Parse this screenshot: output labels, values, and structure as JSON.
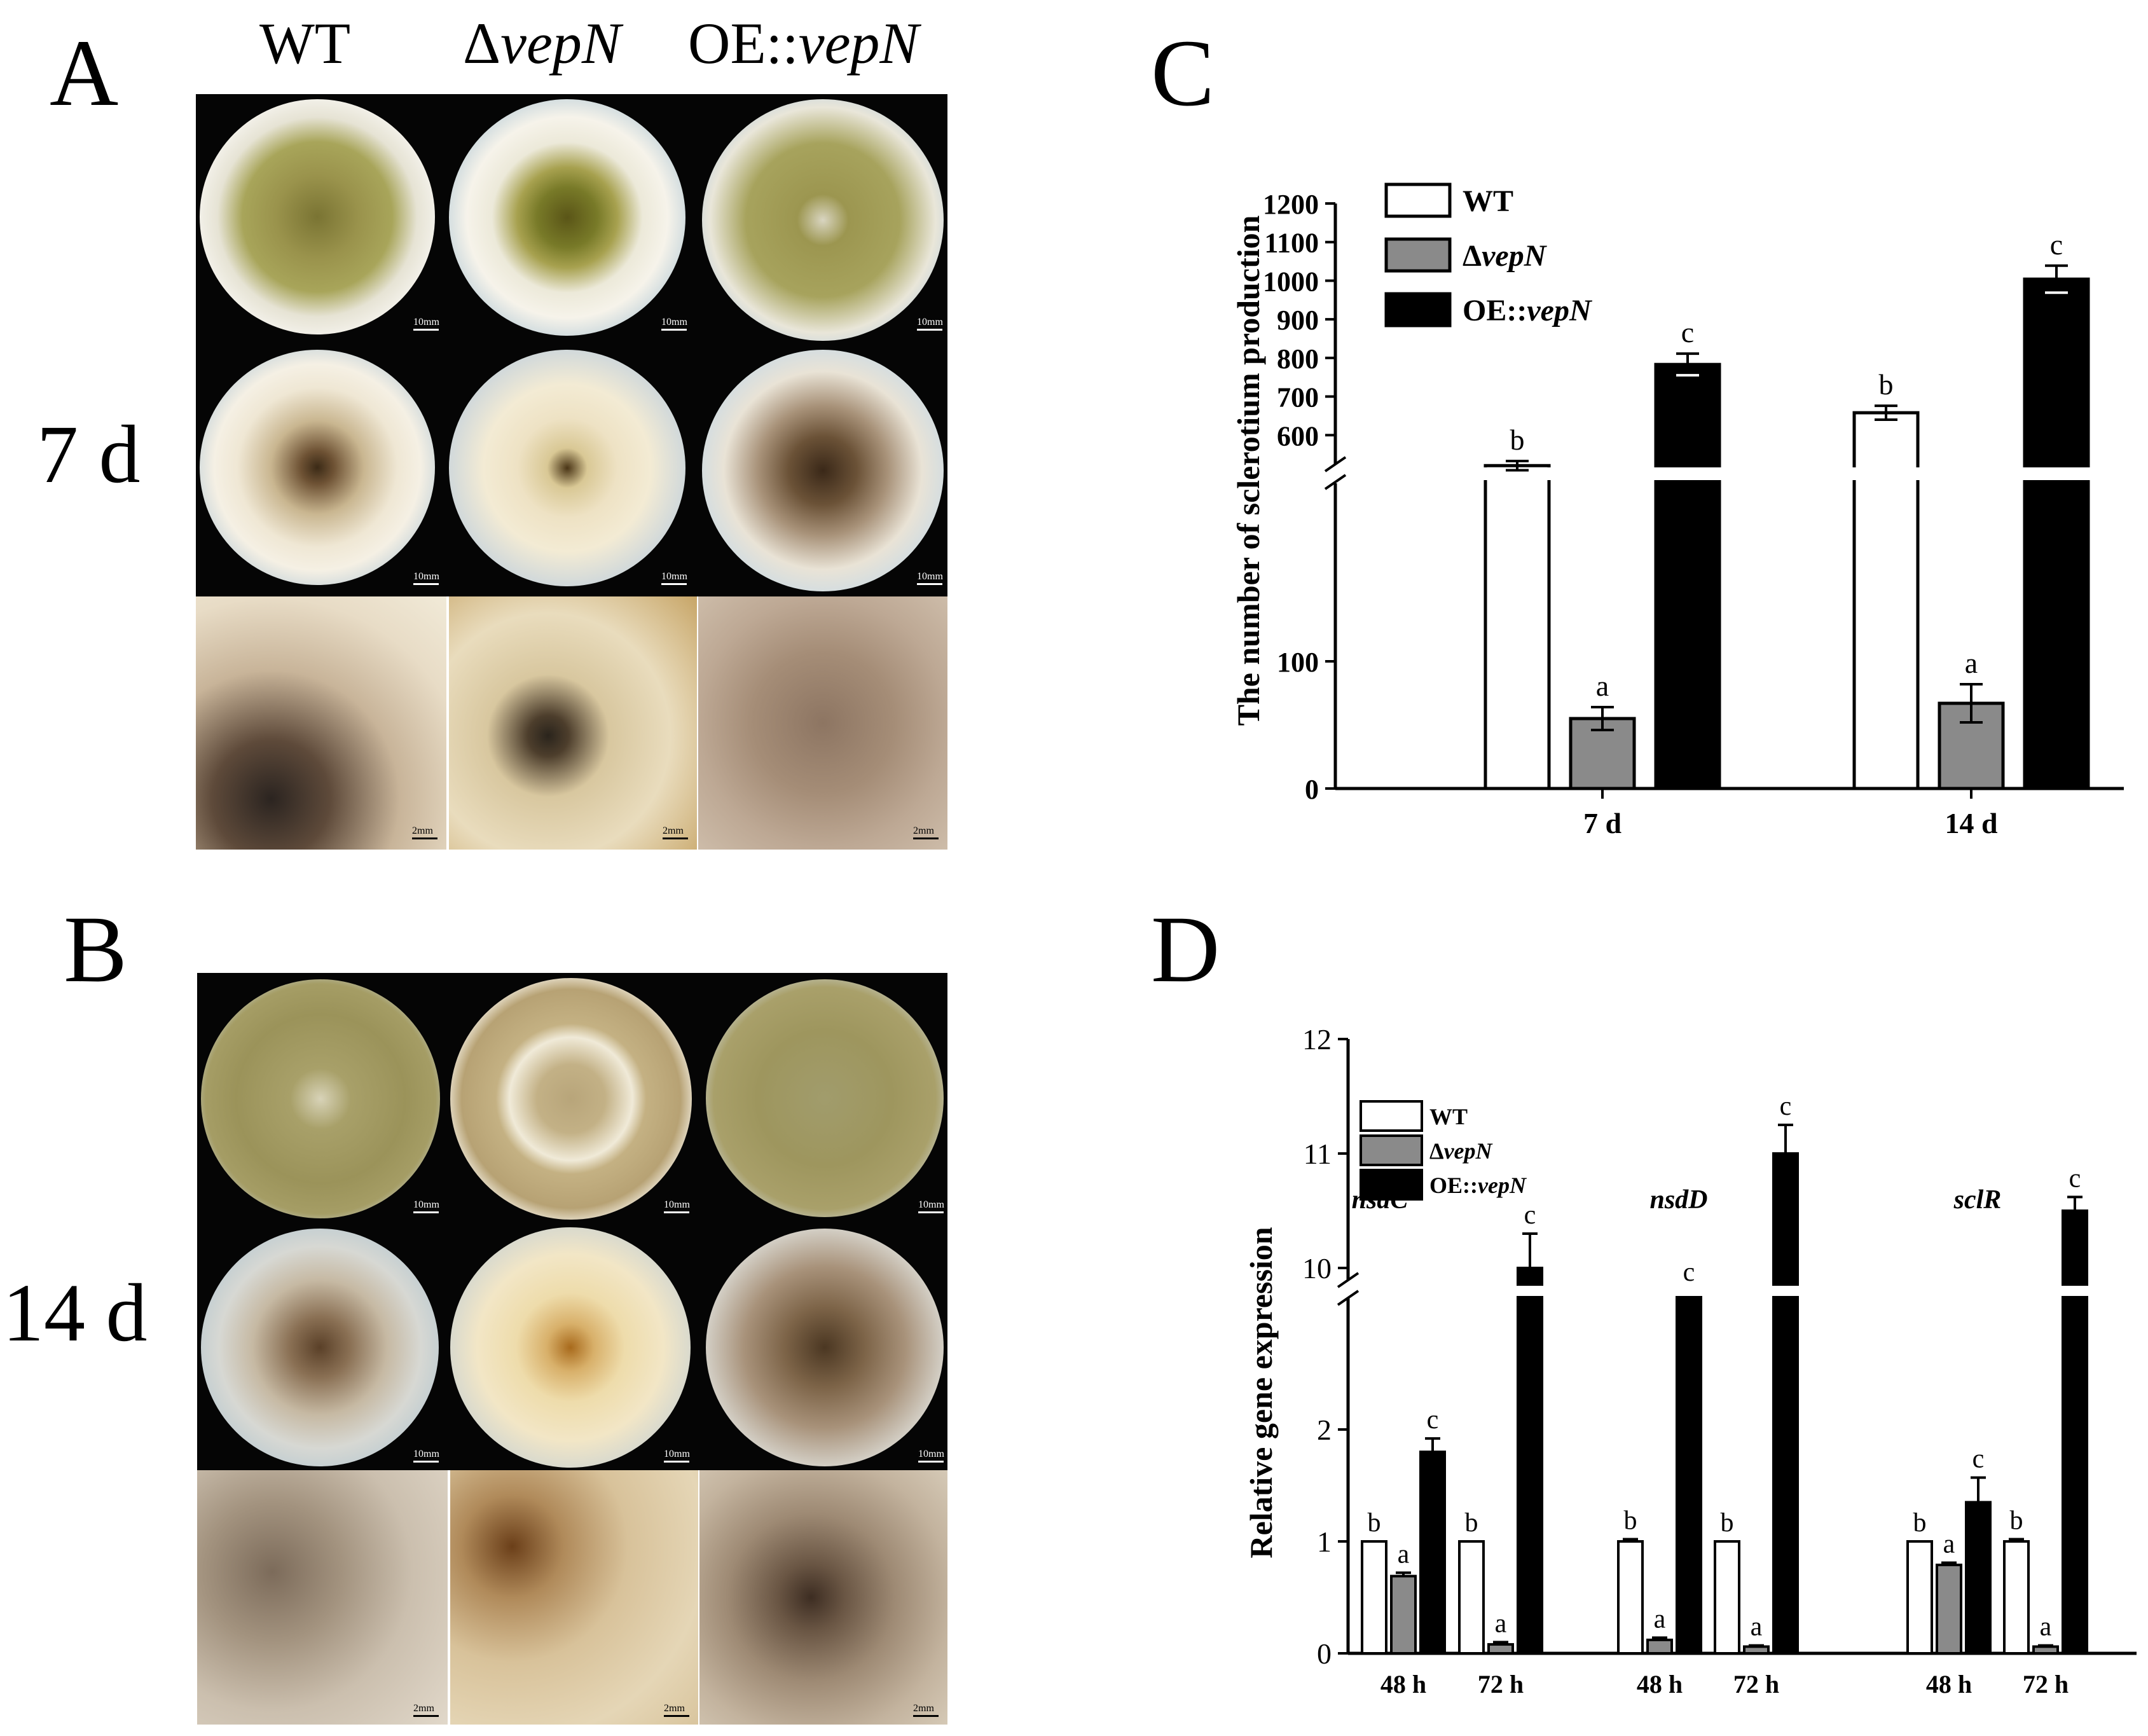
{
  "panels": {
    "A": {
      "letter": "A",
      "columns": [
        "WT",
        "ΔvepN",
        "OE::vepN"
      ],
      "day_label": "7 d",
      "scale_plate": "10mm",
      "scale_closeup": "2mm"
    },
    "B": {
      "letter": "B",
      "day_label": "14 d",
      "scale_plate": "10mm",
      "scale_closeup": "2mm"
    },
    "C": {
      "letter": "C"
    },
    "D": {
      "letter": "D"
    }
  },
  "colors": {
    "wt": "#ffffff",
    "delta": "#8a8a8a",
    "oe": "#000000",
    "photo_background": "#050505"
  },
  "chart_data": [
    {
      "panel": "C",
      "type": "bar",
      "ylabel": "The number of sclerotium production",
      "xlabel": "",
      "categories": [
        "7 d",
        "14 d"
      ],
      "series": [
        {
          "name": "WT",
          "values": [
            521,
            658
          ],
          "errors": [
            12,
            18
          ],
          "letters": [
            "b",
            "b"
          ]
        },
        {
          "name": "ΔvepN",
          "values": [
            55,
            67
          ],
          "errors": [
            9,
            15
          ],
          "letters": [
            "a",
            "a"
          ]
        },
        {
          "name": "OE::vepN",
          "values": [
            783,
            1004
          ],
          "errors": [
            28,
            35
          ],
          "letters": [
            "c",
            "c"
          ]
        }
      ],
      "axis_break": [
        200,
        500
      ],
      "ylim": [
        0,
        1200
      ],
      "yticks": [
        0,
        100,
        600,
        700,
        800,
        900,
        1000,
        1100,
        1200
      ],
      "legend_position": "top-left"
    },
    {
      "panel": "D",
      "type": "bar",
      "ylabel": "Relative gene expression",
      "xlabel": "",
      "groups": [
        "nsdC",
        "nsdD",
        "sclR"
      ],
      "categories": [
        "48 h",
        "72 h",
        "48 h",
        "72 h",
        "48 h",
        "72 h"
      ],
      "series": [
        {
          "name": "WT",
          "values": [
            1,
            1,
            1,
            1,
            1,
            1
          ],
          "errors": [
            0,
            0,
            0.02,
            0,
            0,
            0.02
          ],
          "letters": [
            "b",
            "b",
            "b",
            "b",
            "b",
            "b"
          ]
        },
        {
          "name": "ΔvepN",
          "values": [
            0.69,
            0.08,
            0.12,
            0.06,
            0.79,
            0.06
          ],
          "errors": [
            0.03,
            0.02,
            0.02,
            0.01,
            0.02,
            0.01
          ],
          "letters": [
            "a",
            "a",
            "a",
            "a",
            "a",
            "a"
          ]
        },
        {
          "name": "OE::vepN",
          "values": [
            1.8,
            10.0,
            9.8,
            11.0,
            1.35,
            10.5
          ],
          "errors": [
            0.12,
            0.3,
            0,
            0.25,
            0.22,
            0.12
          ],
          "letters": [
            "c",
            "c",
            "c",
            "c",
            "c",
            "c"
          ]
        }
      ],
      "axis_break": [
        3,
        9.8
      ],
      "ylim": [
        0,
        12
      ],
      "yticks": [
        0,
        1,
        2,
        10,
        11,
        12
      ],
      "legend_position": "top-left"
    }
  ]
}
